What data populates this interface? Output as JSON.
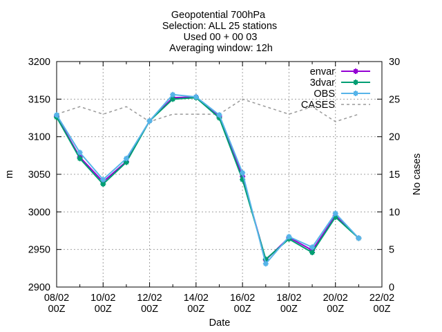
{
  "chart_data": {
    "type": "line",
    "title_lines": [
      "Geopotential 700hPa",
      "Selection: ALL      25 stations",
      "Used 00 + 00 03",
      "Averaging window: 12h"
    ],
    "xlabel": "Date",
    "ylabel": "m",
    "y2label": "No cases",
    "x_ticks": [
      {
        "top": "08/02",
        "bottom": "00Z"
      },
      {
        "top": "10/02",
        "bottom": "00Z"
      },
      {
        "top": "12/02",
        "bottom": "00Z"
      },
      {
        "top": "14/02",
        "bottom": "00Z"
      },
      {
        "top": "16/02",
        "bottom": "00Z"
      },
      {
        "top": "18/02",
        "bottom": "00Z"
      },
      {
        "top": "20/02",
        "bottom": "00Z"
      },
      {
        "top": "22/02",
        "bottom": "00Z"
      }
    ],
    "x": [
      "08/02",
      "09/02",
      "10/02",
      "11/02",
      "12/02",
      "13/02",
      "14/02",
      "15/02",
      "16/02",
      "17/02",
      "18/02",
      "19/02",
      "20/02",
      "21/02"
    ],
    "xlim_days": [
      8,
      22
    ],
    "ylim": [
      2900,
      3200
    ],
    "yticks": [
      2900,
      2950,
      3000,
      3050,
      3100,
      3150,
      3200
    ],
    "y2lim": [
      0,
      30
    ],
    "y2ticks": [
      0,
      5,
      10,
      15,
      20,
      25,
      30
    ],
    "grid": true,
    "legend_position": "top-right",
    "series": [
      {
        "name": "envar",
        "color": "#9400d3",
        "axis": "y",
        "style": "line-points",
        "values": [
          3127,
          3073,
          3040,
          3067,
          3121,
          3152,
          3153,
          3127,
          3047,
          2936,
          2966,
          2949,
          2995,
          2965
        ]
      },
      {
        "name": "3dvar",
        "color": "#009e73",
        "axis": "y",
        "style": "line-points",
        "values": [
          3126,
          3071,
          3037,
          3066,
          3121,
          3150,
          3152,
          3125,
          3043,
          2937,
          2964,
          2946,
          2993,
          2965
        ]
      },
      {
        "name": "OBS",
        "color": "#56b4e9",
        "axis": "y",
        "style": "line-points",
        "values": [
          3129,
          3079,
          3043,
          3071,
          3121,
          3156,
          3153,
          3129,
          3052,
          2931,
          2967,
          2953,
          2998,
          2965
        ]
      },
      {
        "name": "CASES",
        "color": "#999999",
        "axis": "y2",
        "style": "dashed",
        "values": [
          23,
          24,
          23,
          24,
          22,
          23,
          23,
          23,
          25,
          24,
          23,
          24,
          22,
          23
        ]
      }
    ]
  }
}
